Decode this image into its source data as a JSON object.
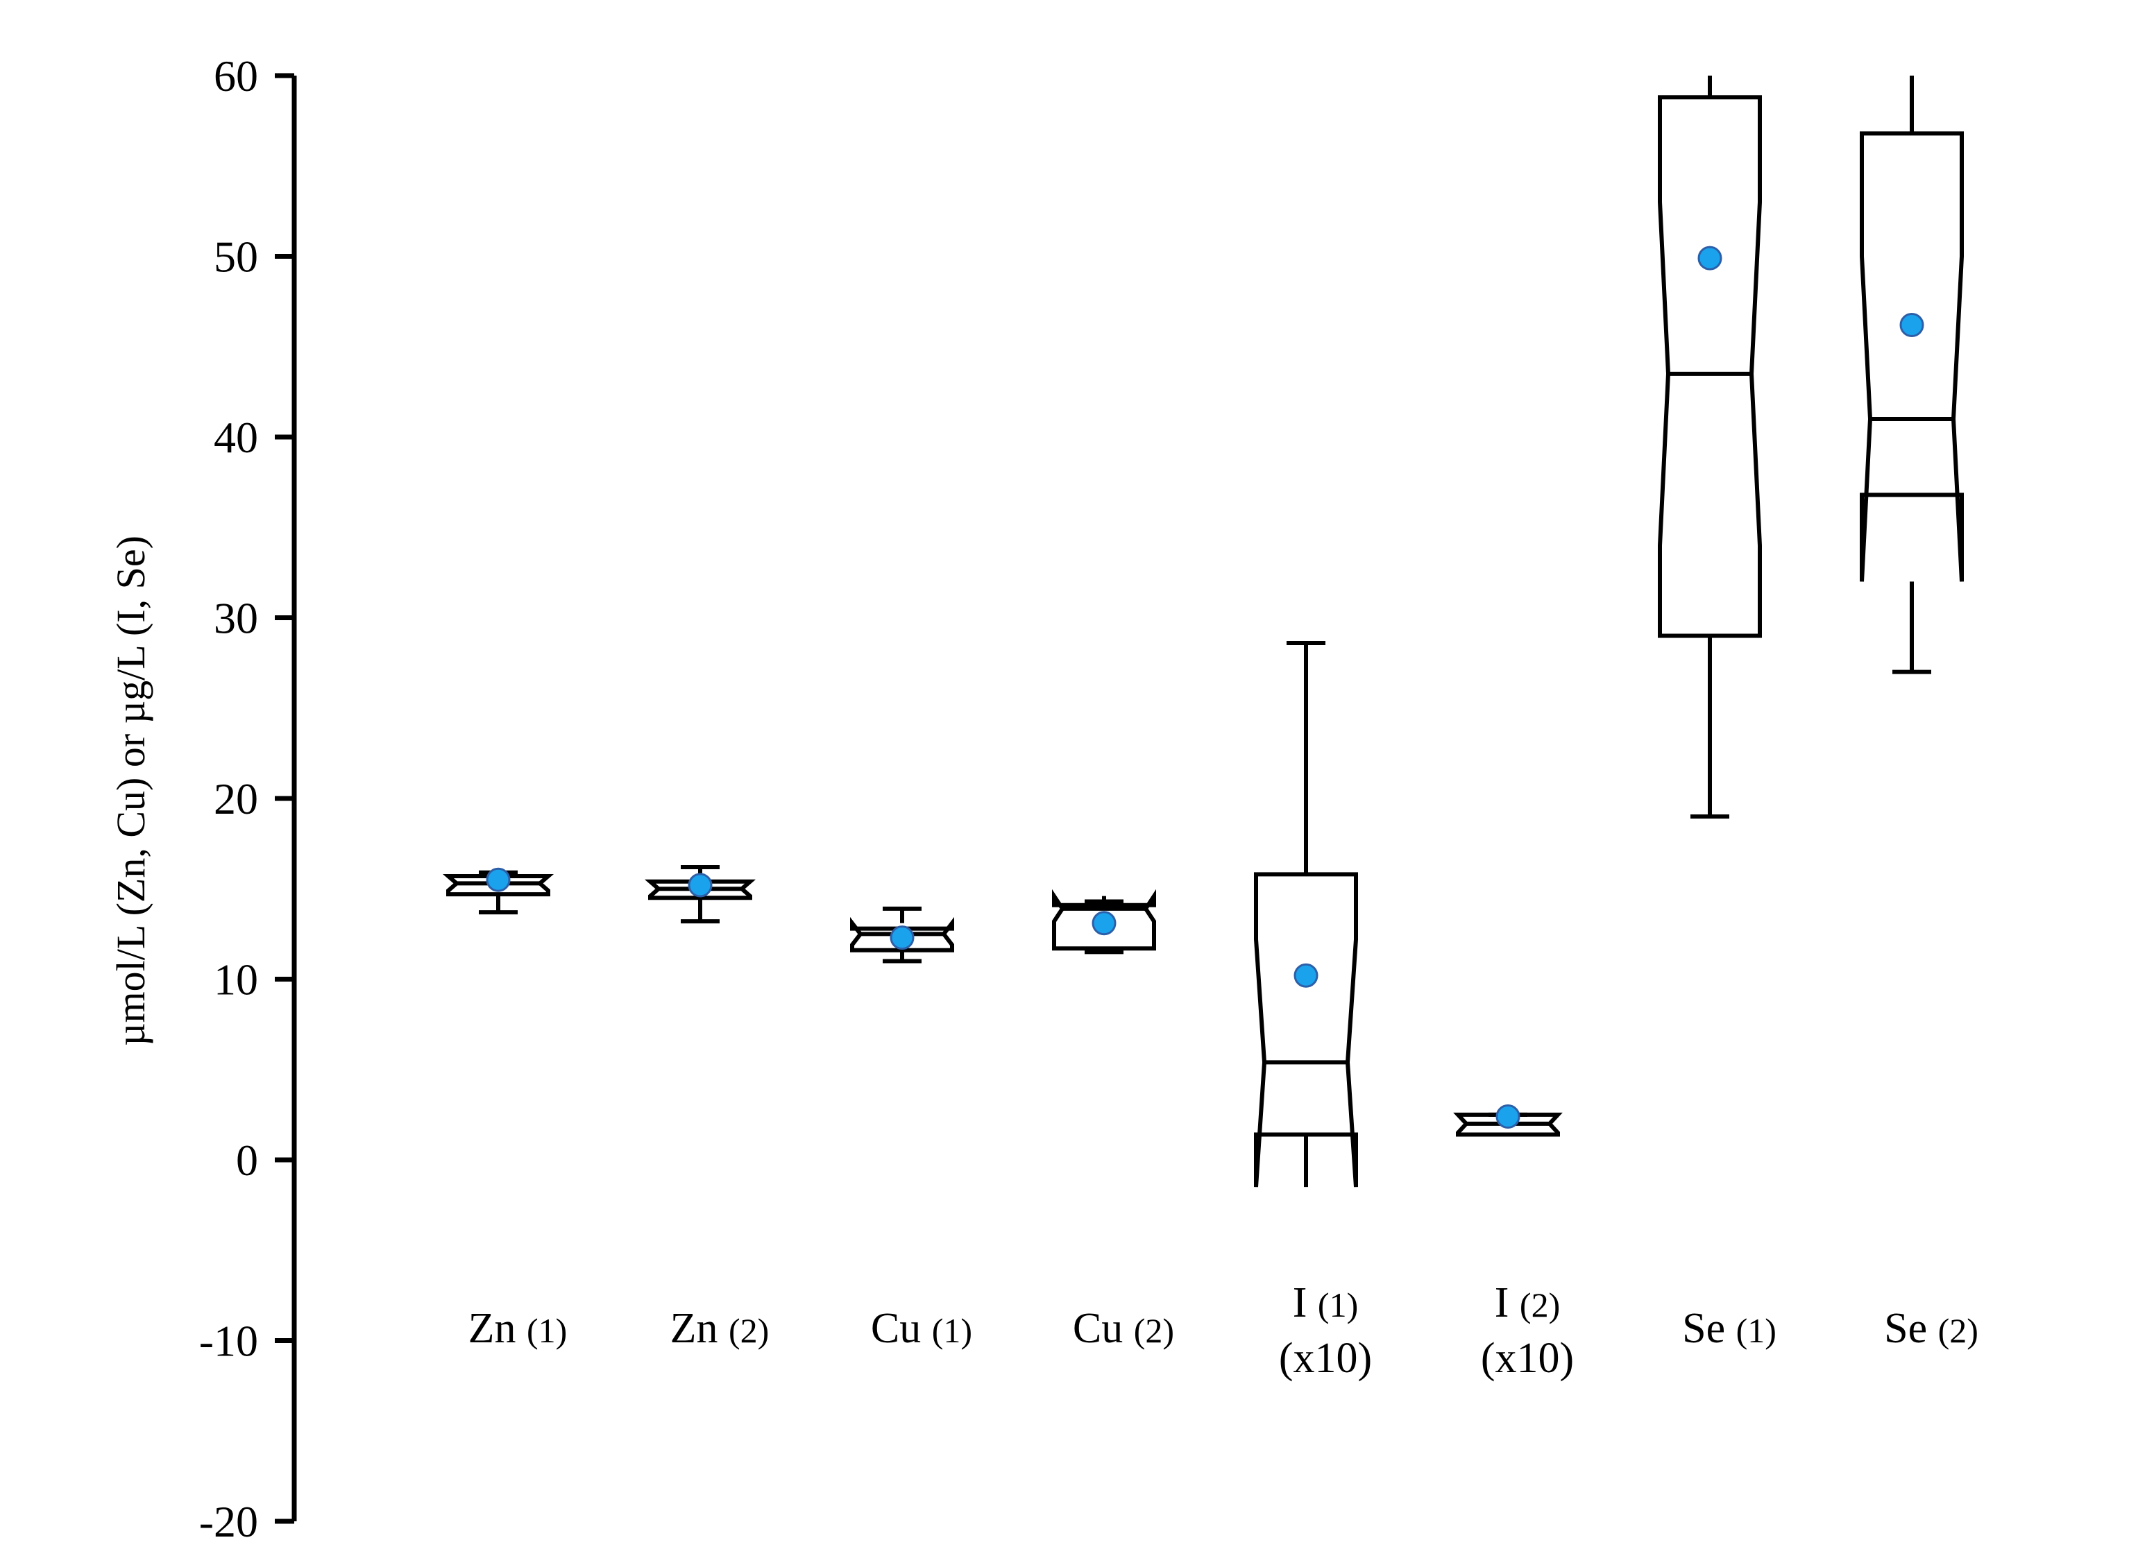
{
  "chart_data": {
    "type": "box",
    "ylabel": "µmol/L (Zn, Cu) or µg/L (I, Se)",
    "ylim": [
      -20,
      60
    ],
    "yticks": [
      60,
      50,
      40,
      30,
      20,
      10,
      0,
      -10,
      -20
    ],
    "grid": false,
    "legend": "none",
    "colors": {
      "box": "#000000",
      "mean_marker": "#1aa3ec",
      "mean_marker_edge": "#2d5fa8"
    },
    "categories": [
      {
        "main": "Zn",
        "sub": "(1)",
        "line2": ""
      },
      {
        "main": "Zn",
        "sub": "(2)",
        "line2": ""
      },
      {
        "main": "Cu",
        "sub": "(1)",
        "line2": ""
      },
      {
        "main": "Cu",
        "sub": "(2)",
        "line2": ""
      },
      {
        "main": "I",
        "sub": "(1)",
        "line2": "(x10)"
      },
      {
        "main": "I",
        "sub": "(2)",
        "line2": "(x10)"
      },
      {
        "main": "Se",
        "sub": "(1)",
        "line2": ""
      },
      {
        "main": "Se",
        "sub": "(2)",
        "line2": ""
      }
    ],
    "boxes": [
      {
        "whisker_low": 13.7,
        "q1": 14.7,
        "median": 15.3,
        "q3": 15.7,
        "whisker_high": 15.9,
        "notch_low": 14.9,
        "notch_high": 15.7,
        "mean": 15.5
      },
      {
        "whisker_low": 13.2,
        "q1": 14.5,
        "median": 15.0,
        "q3": 15.4,
        "whisker_high": 16.2,
        "notch_low": 14.6,
        "notch_high": 15.4,
        "mean": 15.2
      },
      {
        "whisker_low": 11.0,
        "q1": 11.6,
        "median": 12.5,
        "q3": 12.8,
        "whisker_high": 13.9,
        "notch_low": 11.9,
        "notch_high": 13.1,
        "mean": 12.3
      },
      {
        "whisker_low": 11.5,
        "q1": 11.7,
        "median": 13.9,
        "q3": 14.1,
        "whisker_high": 14.3,
        "notch_low": 13.2,
        "notch_high": 14.6,
        "mean": 13.1
      },
      {
        "whisker_low": 1.4,
        "q1": 1.4,
        "median": 5.4,
        "q3": 15.8,
        "whisker_high": 28.6,
        "notch_low": -1.5,
        "notch_high": 12.2,
        "mean": 10.2
      },
      {
        "whisker_low": 1.4,
        "q1": 1.4,
        "median": 2.0,
        "q3": 2.5,
        "whisker_high": 2.5,
        "notch_low": 1.5,
        "notch_high": 2.5,
        "mean": 2.4
      },
      {
        "whisker_low": 19.0,
        "q1": 29.0,
        "median": 43.5,
        "q3": 58.8,
        "whisker_high": 60.0,
        "notch_low": 34.0,
        "notch_high": 53.0,
        "mean": 49.9
      },
      {
        "whisker_low": 27.0,
        "q1": 36.8,
        "median": 41.0,
        "q3": 56.8,
        "whisker_high": 60.0,
        "notch_low": 32.0,
        "notch_high": 50.0,
        "mean": 46.2
      }
    ]
  }
}
